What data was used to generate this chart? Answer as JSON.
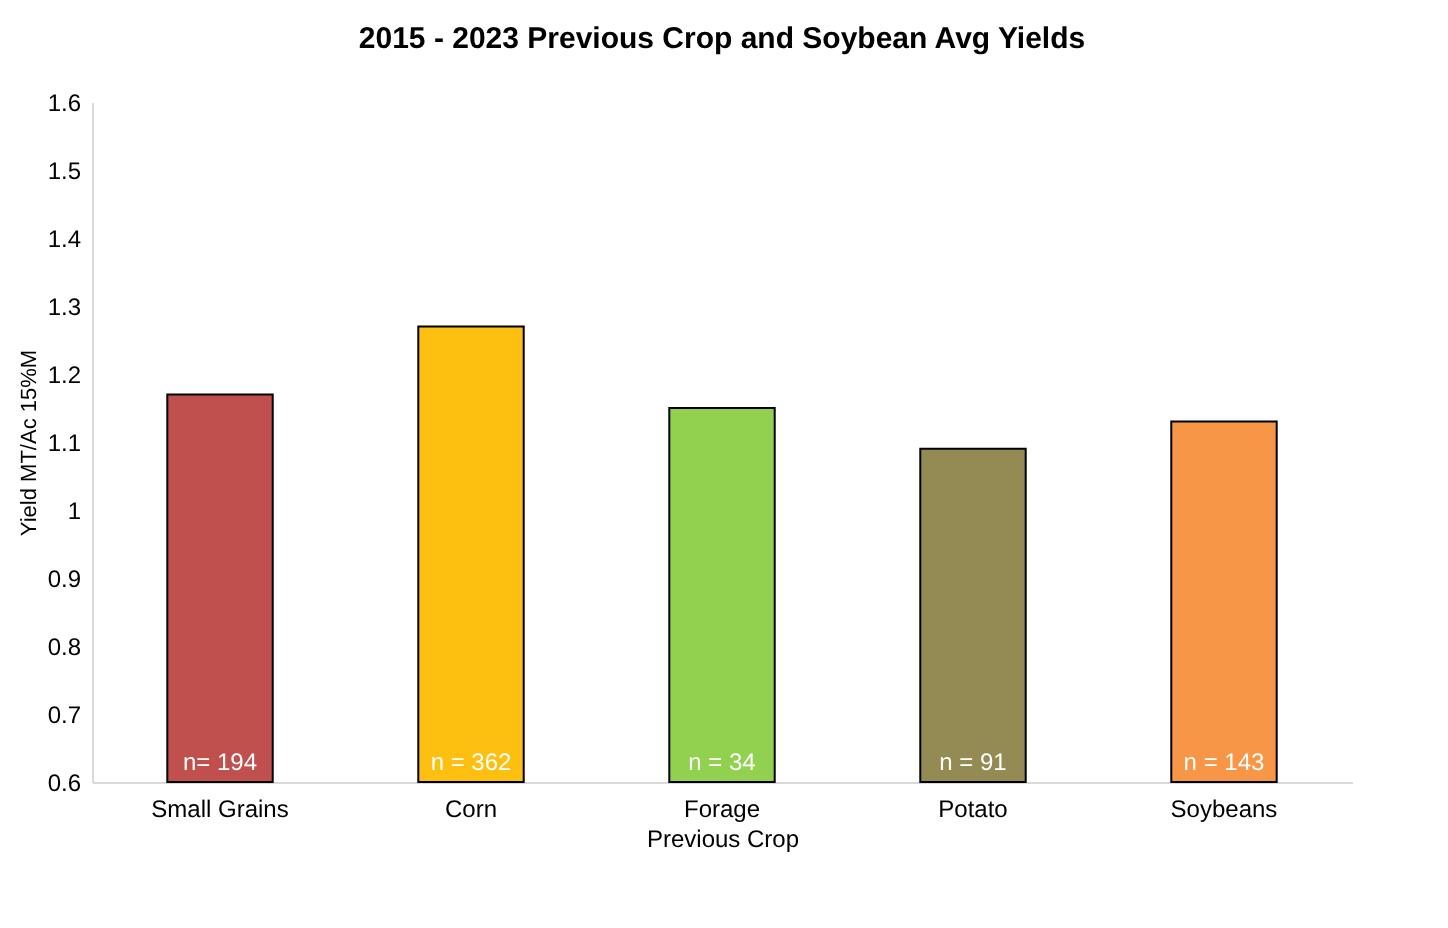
{
  "chart_data": {
    "type": "bar",
    "title": "2015 - 2023 Previous Crop and Soybean Avg Yields",
    "xlabel": "Previous Crop",
    "ylabel": "Yield MT/Ac 15%M",
    "categories": [
      "Small Grains",
      "Corn",
      "Forage",
      "Potato",
      "Soybeans"
    ],
    "values": [
      1.17,
      1.27,
      1.15,
      1.09,
      1.13
    ],
    "colors": [
      "#c0504d",
      "#fdbf10",
      "#92d050",
      "#948a54",
      "#f79646"
    ],
    "ylim": [
      0.6,
      1.6
    ],
    "yticks": [
      0.6,
      0.7,
      0.8,
      0.9,
      1,
      1.1,
      1.2,
      1.3,
      1.4,
      1.5,
      1.6
    ],
    "grid": false,
    "annotations": [
      "n= 194",
      "n = 362",
      "n = 34",
      "n = 91",
      "n = 143"
    ]
  }
}
